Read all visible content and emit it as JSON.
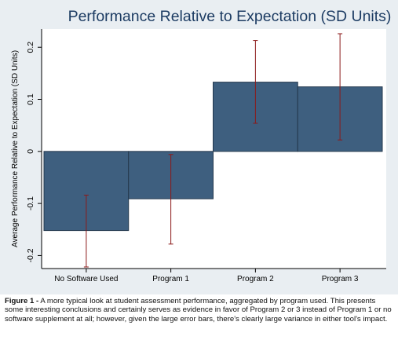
{
  "chart_data": {
    "type": "bar",
    "title": "Performance Relative to Expectation (SD Units)",
    "ylabel": "Average Performance Relative to Expectation (SD Units)",
    "xlabel": "",
    "categories": [
      "No Software Used",
      "Program 1",
      "Program 2",
      "Program 3"
    ],
    "values": [
      -0.152,
      -0.091,
      0.133,
      0.124
    ],
    "error_low": [
      -0.222,
      -0.178,
      0.054,
      0.022
    ],
    "error_high": [
      -0.084,
      -0.006,
      0.213,
      0.226
    ],
    "ylim": [
      -0.225,
      0.235
    ],
    "yticks": [
      -0.2,
      -0.1,
      0,
      0.1,
      0.2
    ],
    "ytick_labels": [
      "-0.2",
      "-0.1",
      "0",
      "0.1",
      "0.2"
    ],
    "grid": false,
    "colors": {
      "bar": "#3e5f7f",
      "bar_edge": "#24384d",
      "error": "#8b1a1a",
      "title": "#1d3c63",
      "background": "#e9eef2",
      "plot": "#ffffff"
    }
  },
  "caption": {
    "label": "Figure 1 -",
    "text": " A more typical look at student assessment performance, aggregated by program used. This presents some interesting conclusions and certainly serves as evidence in favor of Program 2 or 3 instead of Program 1 or no software supplement at all; however, given the large error bars, there's clearly large variance in either tool's impact."
  }
}
